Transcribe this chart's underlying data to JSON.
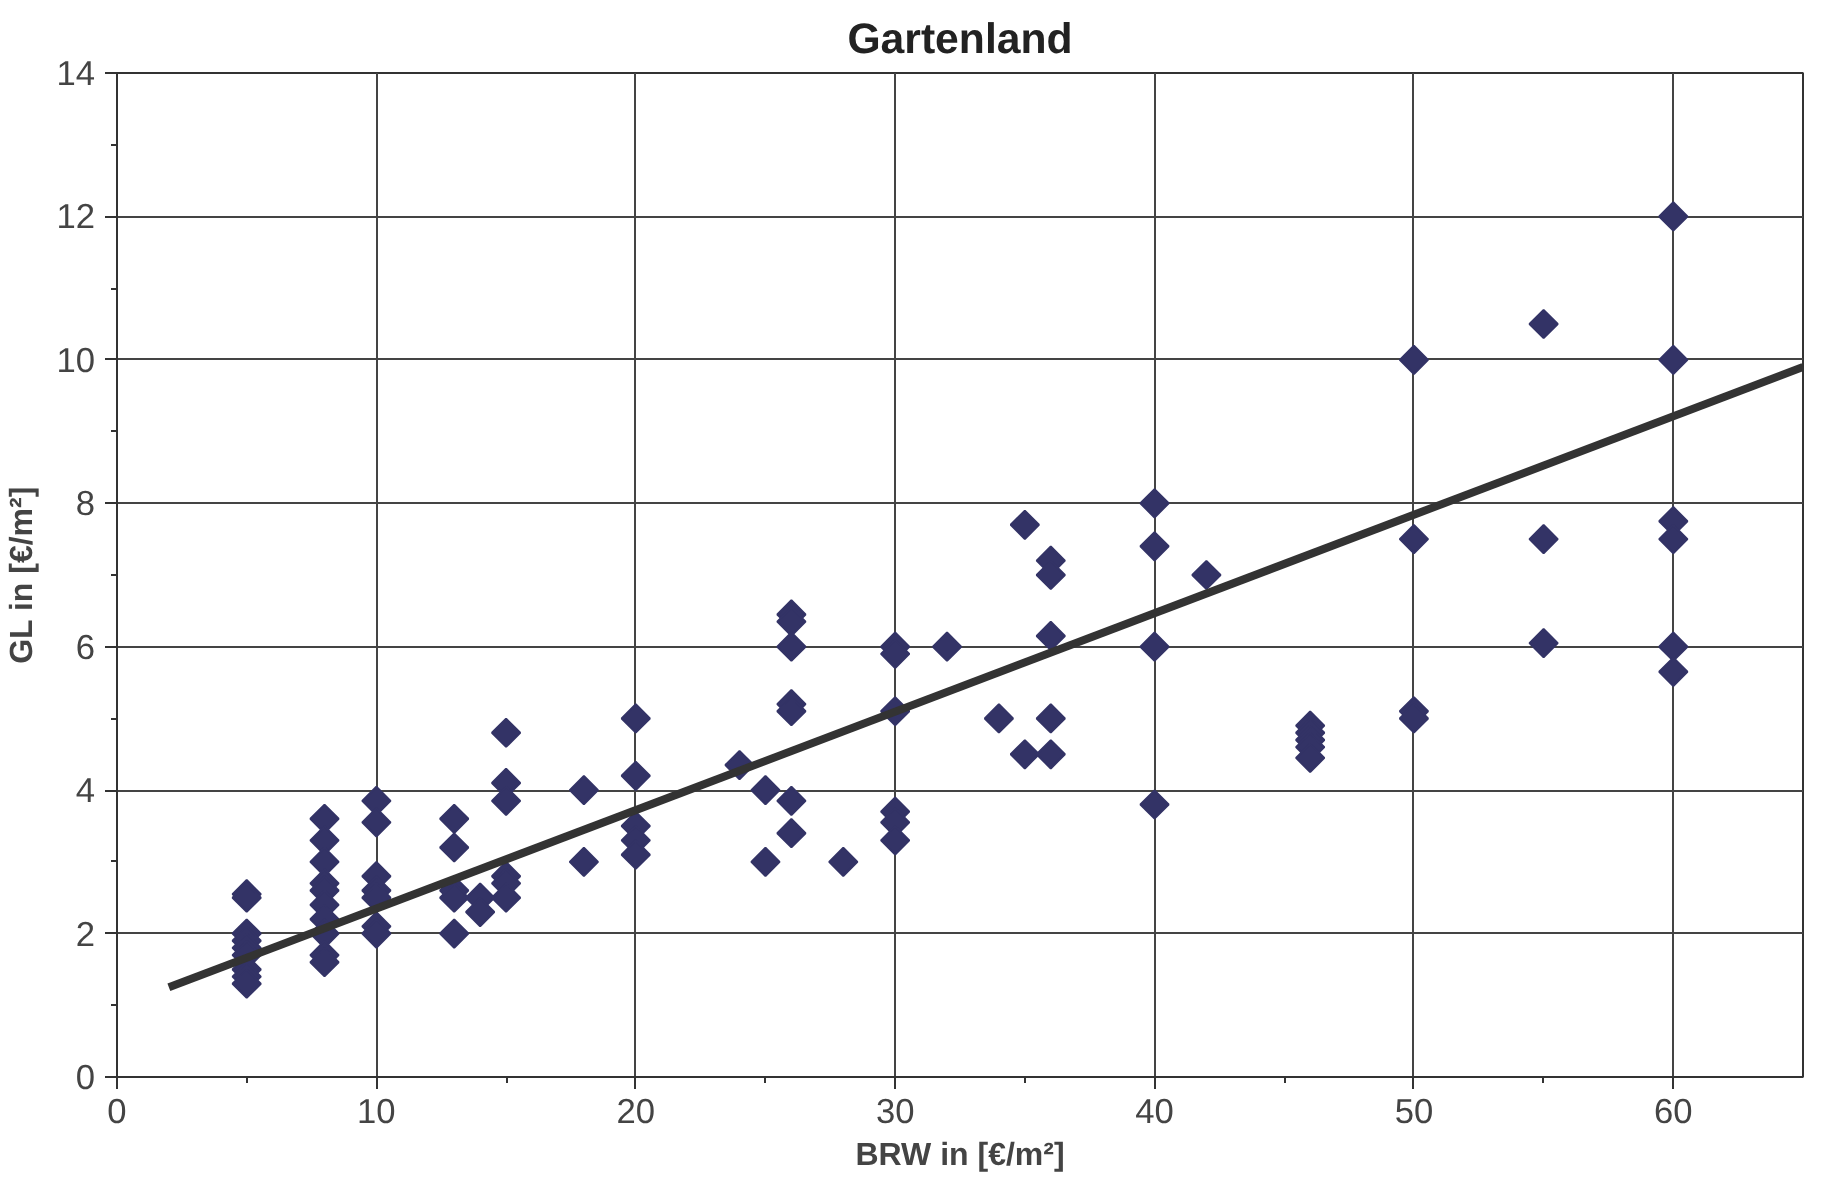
{
  "chart_data": {
    "type": "scatter",
    "title": "Gartenland",
    "xlabel": "BRW in [€/m²]",
    "ylabel": "GL in [€/m²]",
    "xlim": [
      0,
      65
    ],
    "ylim": [
      0,
      14
    ],
    "xticks": [
      0,
      10,
      20,
      30,
      40,
      50,
      60
    ],
    "yticks": [
      0,
      2,
      4,
      6,
      8,
      10,
      12,
      14
    ],
    "grid": true,
    "marker": "diamond",
    "series": [
      {
        "color": "#333366",
        "x": [
          5,
          5,
          5,
          5,
          5,
          5,
          5,
          5,
          5,
          8,
          8,
          8,
          8,
          8,
          8,
          8,
          8,
          8,
          8,
          10,
          10,
          10,
          10,
          10,
          10,
          10,
          13,
          13,
          13,
          13,
          13,
          14,
          14,
          15,
          15,
          15,
          15,
          15,
          15,
          18,
          18,
          20,
          20,
          20,
          20,
          20,
          24,
          25,
          25,
          26,
          26,
          26,
          26,
          26,
          26,
          26,
          28,
          30,
          30,
          30,
          30,
          30,
          30,
          32,
          34,
          35,
          35,
          36,
          36,
          36,
          36,
          36,
          40,
          40,
          40,
          40,
          42,
          46,
          46,
          46,
          46,
          46,
          50,
          50,
          50,
          50,
          55,
          55,
          55,
          60,
          60,
          60,
          60,
          60,
          60
        ],
        "values": [
          2.55,
          2.5,
          2.0,
          1.9,
          1.8,
          1.7,
          1.5,
          1.4,
          1.3,
          3.6,
          3.3,
          3.0,
          2.7,
          2.6,
          2.4,
          2.2,
          2.0,
          1.7,
          1.6,
          3.85,
          3.55,
          2.8,
          2.6,
          2.5,
          2.1,
          2.0,
          3.6,
          3.2,
          2.6,
          2.5,
          2.0,
          2.5,
          2.3,
          4.8,
          4.1,
          3.85,
          2.8,
          2.7,
          2.5,
          4.0,
          3.0,
          5.0,
          4.2,
          3.5,
          3.3,
          3.1,
          4.35,
          4.0,
          3.0,
          6.45,
          6.35,
          6.0,
          5.2,
          5.1,
          3.85,
          3.4,
          3.0,
          6.0,
          5.9,
          5.1,
          3.7,
          3.55,
          3.3,
          6.0,
          5.0,
          7.7,
          4.5,
          7.2,
          7.0,
          6.15,
          5.0,
          4.5,
          8.0,
          7.4,
          6.0,
          3.8,
          7.0,
          4.9,
          4.8,
          4.7,
          4.6,
          4.45,
          10.0,
          7.5,
          5.1,
          5.0,
          10.5,
          7.5,
          6.05,
          12.0,
          10.0,
          7.75,
          7.5,
          6.0,
          5.65
        ]
      },
      {
        "type": "line",
        "marker": "none",
        "color": "#333333",
        "x": [
          2,
          65
        ],
        "values": [
          1.25,
          9.9
        ]
      }
    ]
  }
}
